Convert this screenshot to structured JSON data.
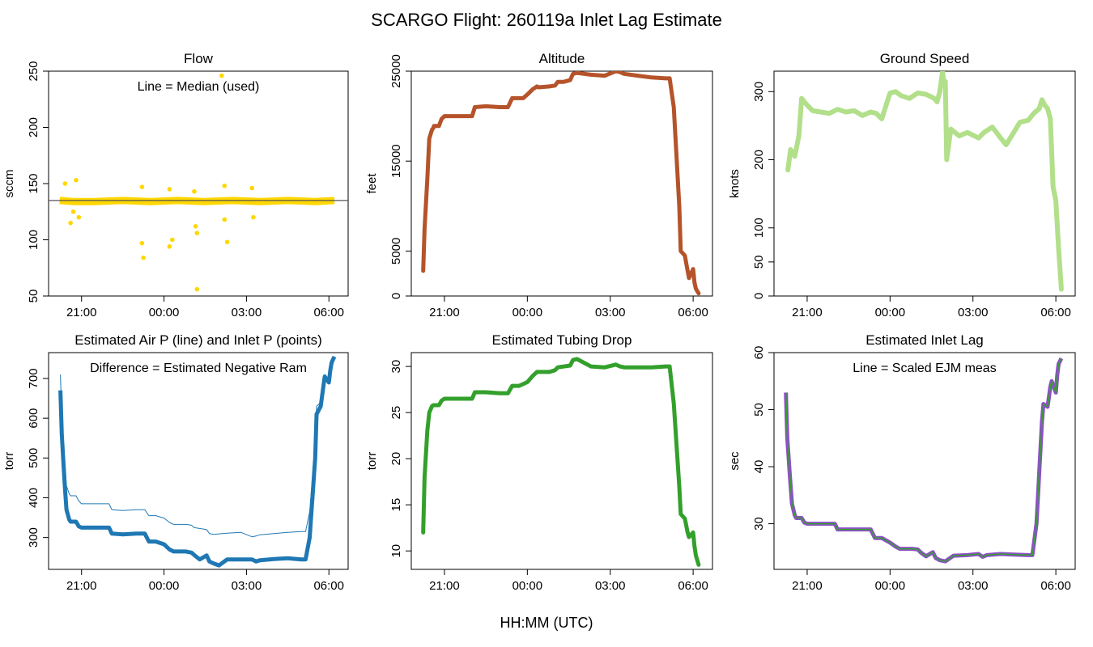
{
  "title": "SCARGO Flight: 260119a  Inlet Lag Estimate",
  "xlabel": "HH:MM (UTC)",
  "colors": {
    "flow": "#FFD700",
    "altitude": "#B5532A",
    "speed": "#B2DF8A",
    "pressure": "#1F78B4",
    "tubing": "#33A02C",
    "lag_points": "#8E4FC9",
    "lag_line": "#33A02C",
    "median_line": "#555555"
  },
  "chart_data": [
    {
      "id": "flow",
      "type": "scatter",
      "title": "Flow",
      "ylabel": "sccm",
      "ylim": [
        50,
        250
      ],
      "yticks": [
        50,
        100,
        150,
        200,
        250
      ],
      "xlim": [
        -4.2,
        6.7
      ],
      "xticks": [
        -3,
        0,
        3,
        6
      ],
      "xtick_labels": [
        "21:00",
        "00:00",
        "03:00",
        "06:00"
      ],
      "annotation": "Line = Median (used)",
      "median": 135,
      "series": [
        {
          "name": "flow_base",
          "x": [
            -3.8,
            -3.3,
            -2.5,
            -1.5,
            -0.5,
            0.5,
            1.5,
            2.5,
            3.5,
            4.5,
            5.5,
            6.2
          ],
          "y": [
            135,
            134,
            134,
            135,
            134,
            135,
            134,
            135,
            134,
            135,
            134,
            135
          ]
        },
        {
          "name": "flow_outliers",
          "x": [
            -3.6,
            -3.4,
            -3.3,
            -3.2,
            -3.1,
            -0.8,
            -0.8,
            -0.75,
            0.2,
            0.3,
            0.2,
            1.1,
            1.15,
            1.2,
            2.2,
            2.3,
            2.2,
            3.2,
            3.25,
            1.2,
            2.1
          ],
          "y": [
            150,
            115,
            125,
            153,
            120,
            147,
            97,
            84,
            145,
            100,
            94,
            143,
            112,
            106,
            148,
            98,
            118,
            146,
            120,
            56,
            246
          ]
        }
      ]
    },
    {
      "id": "altitude",
      "type": "line",
      "title": "Altitude",
      "ylabel": "feet",
      "ylim": [
        0,
        25000
      ],
      "yticks": [
        0,
        5000,
        15000,
        25000
      ],
      "xlim": [
        -4.2,
        6.7
      ],
      "xticks": [
        -3,
        0,
        3,
        6
      ],
      "xtick_labels": [
        "21:00",
        "00:00",
        "03:00",
        "06:00"
      ],
      "series": [
        {
          "name": "altitude",
          "x": [
            -3.77,
            -3.72,
            -3.62,
            -3.55,
            -3.45,
            -3.4,
            -3.38,
            -3.2,
            -3.1,
            -3.0,
            -2.5,
            -2.0,
            -1.9,
            -1.5,
            -1.0,
            -0.7,
            -0.55,
            -0.3,
            -0.15,
            0.0,
            0.2,
            0.35,
            0.4,
            0.8,
            1.0,
            1.1,
            1.3,
            1.55,
            1.65,
            1.8,
            2.3,
            2.8,
            3.2,
            3.35,
            3.5,
            4.0,
            4.5,
            5.0,
            5.15,
            5.3,
            5.5,
            5.55,
            5.7,
            5.8,
            5.85,
            6.0,
            6.05,
            6.1,
            6.2
          ],
          "y": [
            2800,
            7500,
            13000,
            17500,
            18500,
            18700,
            18900,
            18900,
            19700,
            20000,
            20000,
            20000,
            21000,
            21100,
            21000,
            21000,
            22000,
            22000,
            22000,
            22400,
            23000,
            23300,
            23200,
            23300,
            23400,
            23800,
            23800,
            24000,
            24700,
            24800,
            24600,
            24500,
            25000,
            24900,
            24700,
            24500,
            24300,
            24200,
            24200,
            21000,
            10000,
            5000,
            4500,
            2800,
            2000,
            3000,
            1500,
            800,
            300
          ]
        }
      ]
    },
    {
      "id": "speed",
      "type": "line",
      "title": "Ground Speed",
      "ylabel": "knots",
      "ylim": [
        0,
        330
      ],
      "yticks": [
        0,
        50,
        100,
        200,
        300
      ],
      "xlim": [
        -4.2,
        6.7
      ],
      "xticks": [
        -3,
        0,
        3,
        6
      ],
      "xtick_labels": [
        "21:00",
        "00:00",
        "03:00",
        "06:00"
      ],
      "series": [
        {
          "name": "ground_speed",
          "x": [
            -3.7,
            -3.6,
            -3.45,
            -3.3,
            -3.2,
            -3.0,
            -2.8,
            -2.5,
            -2.2,
            -1.9,
            -1.6,
            -1.3,
            -1.0,
            -0.7,
            -0.5,
            -0.3,
            0.0,
            0.2,
            0.4,
            0.7,
            1.0,
            1.3,
            1.6,
            1.7,
            1.8,
            1.9,
            1.95,
            2.0,
            2.05,
            2.2,
            2.5,
            2.8,
            3.0,
            3.2,
            3.4,
            3.7,
            4.0,
            4.2,
            4.4,
            4.7,
            5.0,
            5.2,
            5.4,
            5.5,
            5.6,
            5.7,
            5.8,
            5.9,
            6.0,
            6.1,
            6.2
          ],
          "y": [
            185,
            215,
            205,
            235,
            290,
            280,
            272,
            270,
            268,
            274,
            270,
            272,
            265,
            270,
            268,
            260,
            298,
            300,
            294,
            290,
            298,
            296,
            290,
            285,
            300,
            330,
            310,
            315,
            200,
            245,
            235,
            240,
            236,
            232,
            240,
            248,
            232,
            222,
            235,
            255,
            258,
            268,
            275,
            288,
            280,
            275,
            260,
            160,
            140,
            70,
            10
          ]
        }
      ]
    },
    {
      "id": "pressure",
      "type": "line",
      "title": "Estimated Air P (line) and Inlet P (points)",
      "ylabel": "torr",
      "ylim": [
        220,
        765
      ],
      "yticks": [
        300,
        400,
        500,
        600,
        700
      ],
      "xlim": [
        -4.2,
        6.7
      ],
      "xticks": [
        -3,
        0,
        3,
        6
      ],
      "xtick_labels": [
        "21:00",
        "00:00",
        "03:00",
        "06:00"
      ],
      "annotation": "Difference = Estimated Negative Ram",
      "series": [
        {
          "name": "air_p",
          "x": [
            -3.77,
            -3.72,
            -3.62,
            -3.55,
            -3.45,
            -3.4,
            -3.2,
            -3.1,
            -3.0,
            -2.5,
            -2.0,
            -1.9,
            -1.5,
            -1.0,
            -0.7,
            -0.55,
            -0.3,
            0.0,
            0.2,
            0.35,
            0.8,
            1.0,
            1.1,
            1.55,
            1.65,
            1.8,
            2.3,
            2.8,
            3.2,
            3.35,
            3.5,
            4.0,
            4.5,
            5.0,
            5.15,
            5.3,
            5.5,
            5.55,
            5.7,
            5.8,
            5.85,
            6.0,
            6.05,
            6.1,
            6.2
          ],
          "y": [
            710,
            600,
            500,
            430,
            410,
            405,
            405,
            392,
            385,
            385,
            385,
            370,
            368,
            370,
            370,
            355,
            355,
            349,
            338,
            333,
            333,
            331,
            325,
            320,
            310,
            308,
            311,
            313,
            302,
            304,
            307,
            310,
            313,
            315,
            315,
            365,
            535,
            630,
            640,
            690,
            710,
            690,
            720,
            735,
            750
          ]
        },
        {
          "name": "inlet_p",
          "x": [
            -3.77,
            -3.72,
            -3.62,
            -3.55,
            -3.45,
            -3.4,
            -3.2,
            -3.1,
            -3.0,
            -2.5,
            -2.0,
            -1.9,
            -1.5,
            -1.0,
            -0.7,
            -0.55,
            -0.3,
            0.0,
            0.2,
            0.35,
            0.8,
            1.0,
            1.1,
            1.3,
            1.55,
            1.65,
            1.8,
            2.0,
            2.3,
            2.8,
            3.2,
            3.35,
            3.5,
            4.0,
            4.5,
            5.0,
            5.15,
            5.3,
            5.5,
            5.55,
            5.7,
            5.8,
            5.85,
            6.0,
            6.05,
            6.1,
            6.2
          ],
          "y": [
            670,
            560,
            440,
            370,
            345,
            340,
            340,
            328,
            325,
            325,
            325,
            310,
            308,
            310,
            310,
            290,
            290,
            283,
            270,
            265,
            265,
            262,
            256,
            245,
            255,
            240,
            235,
            230,
            245,
            245,
            245,
            240,
            243,
            246,
            248,
            245,
            245,
            300,
            500,
            610,
            630,
            680,
            705,
            690,
            720,
            740,
            755
          ]
        }
      ]
    },
    {
      "id": "tubing",
      "type": "line",
      "title": "Estimated Tubing Drop",
      "ylabel": "torr",
      "ylim": [
        8,
        31.5
      ],
      "yticks": [
        10,
        15,
        20,
        25,
        30
      ],
      "xlim": [
        -4.2,
        6.7
      ],
      "xticks": [
        -3,
        0,
        3,
        6
      ],
      "xtick_labels": [
        "21:00",
        "00:00",
        "03:00",
        "06:00"
      ],
      "series": [
        {
          "name": "tubing_drop",
          "x": [
            -3.77,
            -3.72,
            -3.62,
            -3.55,
            -3.45,
            -3.4,
            -3.2,
            -3.1,
            -3.0,
            -2.5,
            -2.0,
            -1.9,
            -1.5,
            -1.0,
            -0.7,
            -0.55,
            -0.3,
            0.0,
            0.2,
            0.35,
            0.8,
            1.0,
            1.1,
            1.55,
            1.65,
            1.8,
            2.3,
            2.8,
            3.2,
            3.35,
            3.5,
            4.0,
            4.5,
            5.0,
            5.15,
            5.3,
            5.5,
            5.55,
            5.7,
            5.8,
            5.85,
            6.0,
            6.05,
            6.1,
            6.2
          ],
          "y": [
            12,
            18,
            23,
            25,
            25.7,
            25.8,
            25.8,
            26.3,
            26.5,
            26.5,
            26.5,
            27.2,
            27.2,
            27.1,
            27.1,
            27.9,
            27.9,
            28.3,
            29.0,
            29.4,
            29.4,
            29.6,
            29.9,
            30.1,
            30.7,
            30.8,
            30.0,
            29.9,
            30.2,
            30.0,
            29.9,
            29.9,
            29.9,
            30.0,
            30.0,
            26,
            17,
            14,
            13.5,
            12,
            11.5,
            12,
            10.5,
            9.5,
            8.5
          ]
        }
      ]
    },
    {
      "id": "lag",
      "type": "line",
      "title": "Estimated Inlet Lag",
      "ylabel": "sec",
      "ylim": [
        22,
        60
      ],
      "yticks": [
        30,
        40,
        50,
        60
      ],
      "xlim": [
        -4.2,
        6.7
      ],
      "xticks": [
        -3,
        0,
        3,
        6
      ],
      "xtick_labels": [
        "21:00",
        "00:00",
        "03:00",
        "06:00"
      ],
      "annotation": "Line = Scaled EJM meas",
      "series": [
        {
          "name": "inlet_lag",
          "x": [
            -3.77,
            -3.72,
            -3.62,
            -3.55,
            -3.45,
            -3.4,
            -3.2,
            -3.1,
            -3.0,
            -2.5,
            -2.0,
            -1.9,
            -1.5,
            -1.0,
            -0.7,
            -0.55,
            -0.3,
            0.0,
            0.2,
            0.35,
            0.8,
            1.0,
            1.1,
            1.3,
            1.55,
            1.65,
            1.8,
            2.0,
            2.3,
            2.8,
            3.2,
            3.35,
            3.5,
            4.0,
            4.5,
            5.0,
            5.15,
            5.3,
            5.5,
            5.55,
            5.7,
            5.8,
            5.85,
            6.0,
            6.05,
            6.1,
            6.2
          ],
          "y": [
            53,
            45,
            38,
            33.5,
            31.5,
            31,
            31,
            30.2,
            30,
            30,
            30,
            29,
            29,
            29,
            29,
            27.5,
            27.5,
            26.7,
            26,
            25.6,
            25.6,
            25.5,
            25,
            24.3,
            25,
            24,
            23.6,
            23.4,
            24.4,
            24.5,
            24.7,
            24.2,
            24.5,
            24.7,
            24.6,
            24.5,
            24.5,
            30,
            48,
            51,
            50.5,
            54,
            55,
            53,
            56,
            58,
            59
          ]
        }
      ]
    }
  ]
}
